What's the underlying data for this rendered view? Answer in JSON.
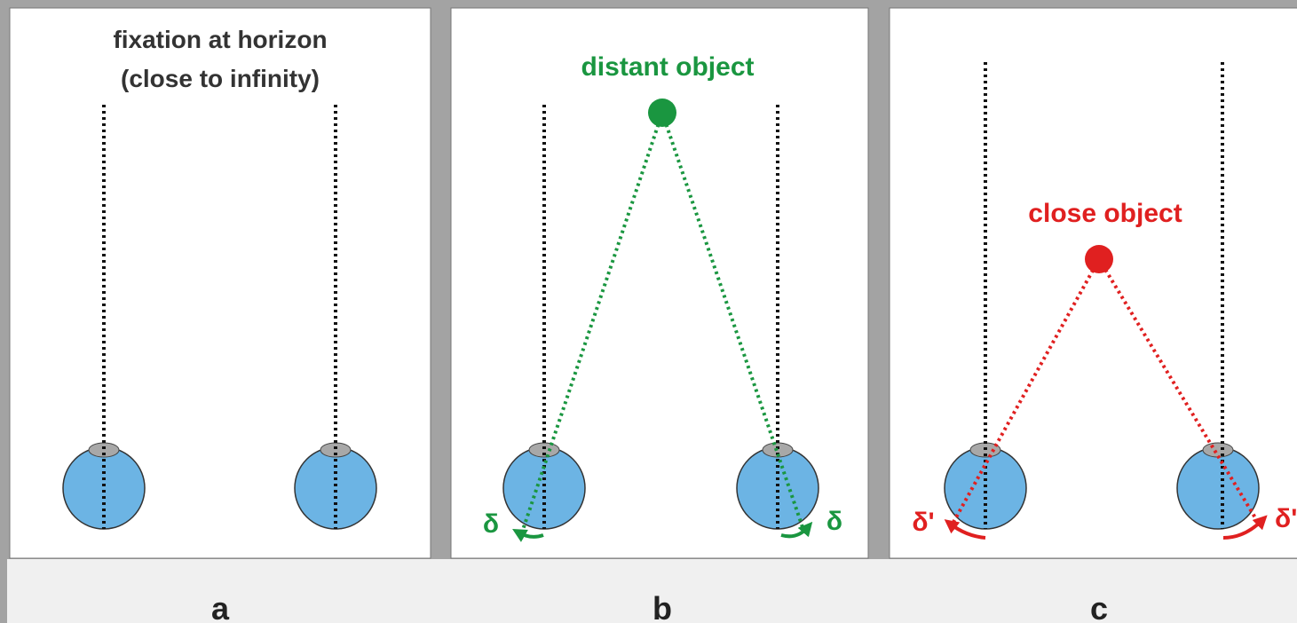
{
  "panels": [
    {
      "label": "a",
      "title_lines": [
        "fixation at horizon",
        "(close to infinity)"
      ]
    },
    {
      "label": "b",
      "object_label": "distant object",
      "angle_labels": [
        "δ",
        "δ"
      ]
    },
    {
      "label": "c",
      "object_label": "close object",
      "angle_labels": [
        "δ'",
        "δ'"
      ]
    }
  ]
}
